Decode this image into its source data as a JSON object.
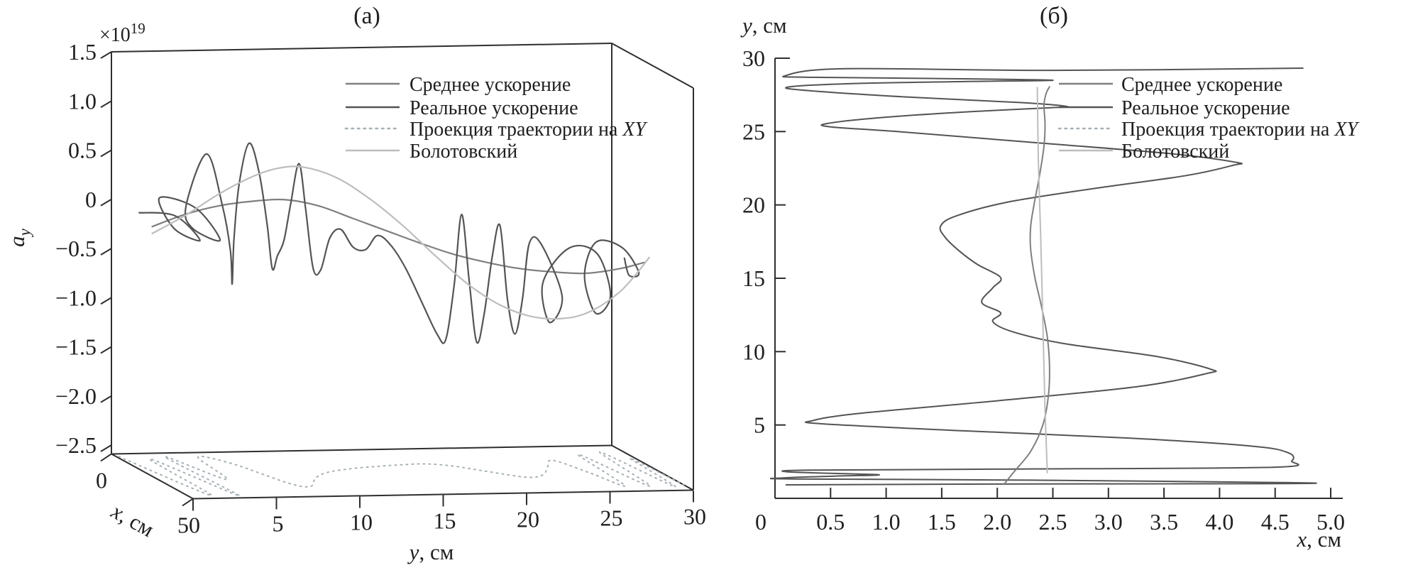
{
  "panel_a": {
    "title": "(а)",
    "offset_text": "×10",
    "offset_exponent": "19",
    "z_axis_label": {
      "main": "a",
      "sub": "y"
    },
    "x_axis_label": {
      "var": "x",
      "unit": ", см"
    },
    "y_axis_label": {
      "var": "y",
      "unit": ", см"
    },
    "z_tick_labels": [
      "1.5",
      "1.0",
      "0.5",
      "0",
      "−0.5",
      "−1.0",
      "−1.5",
      "−2.0",
      "−2.5"
    ],
    "y_tick_labels": [
      "0",
      "5",
      "10",
      "15",
      "20",
      "25",
      "30"
    ],
    "x_tick_labels": [
      "0",
      "5"
    ]
  },
  "panel_b": {
    "title": "(б)",
    "y_axis_label": {
      "var": "y",
      "unit": ", см"
    },
    "x_axis_label": {
      "var": "x",
      "unit": ", см"
    },
    "y_tick_labels": [
      "5",
      "10",
      "15",
      "20",
      "25",
      "30"
    ],
    "x_tick_labels": [
      "0",
      "0.5",
      "1.0",
      "1.5",
      "2.0",
      "2.5",
      "3.0",
      "3.5",
      "4.0",
      "4.5",
      "5.0"
    ]
  },
  "legend": {
    "items": [
      {
        "label": "Среднее ускорение",
        "label_italic": "",
        "color": "#7f7f7f",
        "style": "solid"
      },
      {
        "label": "Реальное ускорение",
        "label_italic": "",
        "color": "#545454",
        "style": "solid"
      },
      {
        "label": "Проекция траектории на ",
        "label_italic": "XY",
        "color": "#a7b0b5",
        "style": "dotted"
      },
      {
        "label": "Болотовский",
        "label_italic": "",
        "color": "#bdbdbd",
        "style": "solid"
      }
    ]
  },
  "chart_data": [
    {
      "id": "panel_a",
      "type": "line",
      "projection": "3d",
      "title": "(а)",
      "xlabel": "x, см",
      "ylabel": "y, см",
      "zlabel": "a_y, ×10^19",
      "xlim": [
        0,
        5
      ],
      "ylim": [
        0,
        30
      ],
      "zlim": [
        -2.5,
        1.5
      ],
      "grid": false,
      "legend_position": "upper right inside",
      "series": [
        {
          "name": "Среднее ускорение",
          "color": "#7f7f7f",
          "width": 2.2,
          "dash": "",
          "points_yzx": [
            [
              0,
              -0.05,
              2.5
            ],
            [
              2,
              0.07,
              2.5
            ],
            [
              4,
              0.15,
              2.5
            ],
            [
              6,
              0.19,
              2.5
            ],
            [
              8,
              0.2,
              2.5
            ],
            [
              10,
              0.13,
              2.5
            ],
            [
              12,
              0.0,
              2.5
            ],
            [
              14,
              -0.13,
              2.5
            ],
            [
              16,
              -0.26,
              2.5
            ],
            [
              18,
              -0.38,
              2.5
            ],
            [
              20,
              -0.47,
              2.5
            ],
            [
              22,
              -0.54,
              2.5
            ],
            [
              24,
              -0.58,
              2.5
            ],
            [
              26,
              -0.6,
              2.5
            ],
            [
              28,
              -0.56,
              2.5
            ],
            [
              29.5,
              -0.5,
              2.5
            ]
          ]
        },
        {
          "name": "Реальное ускорение",
          "color": "#545454",
          "width": 2.2,
          "dash": "",
          "points_yzx": [
            [
              0.2,
              0.0,
              1.5
            ],
            [
              0.7,
              0.12,
              3.2
            ],
            [
              1.2,
              -0.04,
              4.2
            ],
            [
              1.6,
              -0.1,
              2.2
            ],
            [
              1.9,
              0.1,
              1.0
            ],
            [
              2.3,
              0.16,
              2.8
            ],
            [
              2.6,
              -0.06,
              4.0
            ],
            [
              2.9,
              -0.12,
              2.0
            ],
            [
              3.1,
              0.05,
              1.4
            ],
            [
              3.45,
              0.66,
              2.3
            ],
            [
              3.8,
              0.2,
              2.9
            ],
            [
              4.1,
              -0.25,
              3.1
            ],
            [
              4.5,
              -0.62,
              2.8
            ],
            [
              4.9,
              -0.2,
              2.5
            ],
            [
              5.3,
              0.35,
              2.4
            ],
            [
              5.8,
              0.78,
              2.5
            ],
            [
              6.3,
              0.5,
              2.6
            ],
            [
              6.8,
              -0.05,
              2.6
            ],
            [
              7.2,
              -0.5,
              2.5
            ],
            [
              7.6,
              -0.38,
              2.4
            ],
            [
              8.0,
              -0.22,
              2.4
            ],
            [
              8.4,
              0.15,
              2.4
            ],
            [
              8.85,
              0.56,
              2.45
            ],
            [
              9.2,
              0.1,
              2.5
            ],
            [
              9.6,
              -0.5,
              2.55
            ],
            [
              10.1,
              -0.52,
              2.5
            ],
            [
              10.7,
              -0.2,
              2.45
            ],
            [
              11.4,
              -0.12,
              2.4
            ],
            [
              12.1,
              -0.3,
              2.45
            ],
            [
              12.8,
              -0.32,
              2.5
            ],
            [
              13.5,
              -0.18,
              2.5
            ],
            [
              14.3,
              -0.28,
              2.5
            ],
            [
              15.2,
              -0.52,
              2.5
            ],
            [
              16.2,
              -0.88,
              2.5
            ],
            [
              17.1,
              -1.2,
              2.5
            ],
            [
              17.6,
              -1.25,
              2.5
            ],
            [
              18.1,
              -0.7,
              2.5
            ],
            [
              18.55,
              0.02,
              2.5
            ],
            [
              19.0,
              -0.65,
              2.5
            ],
            [
              19.45,
              -1.28,
              2.5
            ],
            [
              19.9,
              -1.0,
              2.5
            ],
            [
              20.4,
              -0.4,
              2.5
            ],
            [
              20.85,
              -0.1,
              2.5
            ],
            [
              21.3,
              -0.85,
              2.5
            ],
            [
              21.7,
              -1.2,
              2.55
            ],
            [
              22.2,
              -0.85,
              2.5
            ],
            [
              22.7,
              -0.3,
              2.4
            ],
            [
              23.2,
              -0.28,
              2.6
            ],
            [
              23.7,
              -0.75,
              3.4
            ],
            [
              24.1,
              -1.12,
              2.2
            ],
            [
              24.6,
              -0.8,
              1.3
            ],
            [
              25.1,
              -0.35,
              2.4
            ],
            [
              25.6,
              -0.3,
              3.6
            ],
            [
              26.1,
              -0.7,
              3.9
            ],
            [
              26.5,
              -1.0,
              2.6
            ],
            [
              26.9,
              -0.72,
              1.5
            ],
            [
              27.3,
              -0.35,
              1.8
            ],
            [
              27.7,
              -0.3,
              3.0
            ],
            [
              28.1,
              -0.5,
              3.6
            ],
            [
              28.5,
              -0.62,
              2.6
            ],
            [
              28.8,
              -0.5,
              2.0
            ]
          ]
        },
        {
          "name": "Проекция траектории на XY",
          "color": "#a7b0b5",
          "width": 2,
          "dash": "2 6",
          "on_floor": true,
          "points_yx": [
            [
              0.15,
              0.3
            ],
            [
              1.4,
              4.7
            ],
            [
              1.7,
              0.6
            ],
            [
              3.0,
              4.8
            ],
            [
              2.8,
              0.4
            ],
            [
              4.0,
              3.0
            ],
            [
              4.7,
              0.5
            ],
            [
              6.0,
              1.3
            ],
            [
              7.2,
              3.5
            ],
            [
              8.1,
              3.9
            ],
            [
              9.3,
              3.0
            ],
            [
              10.6,
              2.4
            ],
            [
              12.3,
              2.05
            ],
            [
              14.0,
              1.85
            ],
            [
              15.6,
              1.72
            ],
            [
              17.2,
              1.66
            ],
            [
              18.6,
              1.95
            ],
            [
              20.0,
              2.6
            ],
            [
              21.7,
              3.3
            ],
            [
              22.9,
              3.05
            ],
            [
              24.0,
              2.2
            ],
            [
              25.0,
              1.5
            ],
            [
              25.8,
              2.9
            ],
            [
              26.5,
              4.4
            ],
            [
              27.1,
              0.9
            ],
            [
              27.9,
              4.5
            ],
            [
              28.6,
              0.7
            ],
            [
              29.3,
              4.6
            ],
            [
              29.7,
              1.4
            ],
            [
              30.0,
              4.4
            ]
          ]
        },
        {
          "name": "Болотовский",
          "color": "#bdbdbd",
          "width": 2.2,
          "dash": "",
          "points_yzx": [
            [
              0,
              -0.12,
              2.5
            ],
            [
              2,
              0.06,
              2.5
            ],
            [
              4,
              0.27,
              2.5
            ],
            [
              6,
              0.44,
              2.5
            ],
            [
              7.5,
              0.52,
              2.5
            ],
            [
              9,
              0.53,
              2.5
            ],
            [
              11,
              0.42,
              2.5
            ],
            [
              13,
              0.2,
              2.5
            ],
            [
              15,
              -0.08,
              2.5
            ],
            [
              17,
              -0.4,
              2.5
            ],
            [
              19,
              -0.7,
              2.5
            ],
            [
              21,
              -0.92,
              2.5
            ],
            [
              23,
              -1.04,
              2.5
            ],
            [
              25,
              -1.05,
              2.5
            ],
            [
              26.5,
              -0.97,
              2.5
            ],
            [
              28,
              -0.8,
              2.5
            ],
            [
              29,
              -0.62,
              2.5
            ],
            [
              29.8,
              -0.45,
              2.5
            ]
          ]
        }
      ]
    },
    {
      "id": "panel_b",
      "type": "line",
      "title": "(б)",
      "xlabel": "x, см",
      "ylabel": "y, см",
      "xlim": [
        0,
        5
      ],
      "ylim": [
        0,
        30
      ],
      "grid": false,
      "legend_position": "upper right inside",
      "series": [
        {
          "name": "Реальное ускорение",
          "color": "#545454",
          "width": 2,
          "dash": "",
          "points_xy": [
            [
              0.1,
              0.92
            ],
            [
              2.3,
              0.98
            ],
            [
              4.52,
              1.0
            ],
            [
              4.64,
              1.07
            ],
            [
              2.3,
              1.24
            ],
            [
              0.16,
              1.32
            ],
            [
              0.09,
              1.4
            ],
            [
              0.55,
              1.52
            ],
            [
              0.94,
              1.6
            ],
            [
              0.55,
              1.7
            ],
            [
              0.12,
              1.8
            ],
            [
              0.3,
              1.92
            ],
            [
              2.2,
              2.0
            ],
            [
              4.48,
              2.12
            ],
            [
              4.65,
              2.55
            ],
            [
              4.62,
              3.1
            ],
            [
              4.3,
              3.55
            ],
            [
              3.2,
              4.1
            ],
            [
              1.7,
              4.6
            ],
            [
              0.42,
              5.08
            ],
            [
              0.34,
              5.3
            ],
            [
              0.75,
              5.78
            ],
            [
              2.0,
              6.65
            ],
            [
              3.25,
              7.6
            ],
            [
              3.88,
              8.5
            ],
            [
              3.92,
              8.8
            ],
            [
              3.45,
              9.65
            ],
            [
              2.6,
              10.55
            ],
            [
              2.14,
              11.35
            ],
            [
              1.96,
              12.05
            ],
            [
              2.03,
              12.65
            ],
            [
              1.86,
              13.35
            ],
            [
              1.96,
              14.35
            ],
            [
              2.03,
              15.05
            ],
            [
              1.82,
              15.95
            ],
            [
              1.66,
              16.85
            ],
            [
              1.53,
              17.8
            ],
            [
              1.49,
              18.55
            ],
            [
              1.63,
              19.25
            ],
            [
              2.1,
              20.2
            ],
            [
              2.9,
              21.15
            ],
            [
              3.7,
              22.0
            ],
            [
              4.12,
              22.7
            ],
            [
              4.15,
              22.9
            ],
            [
              3.55,
              23.5
            ],
            [
              2.25,
              24.3
            ],
            [
              1.1,
              25.0
            ],
            [
              0.5,
              25.32
            ],
            [
              0.47,
              25.55
            ],
            [
              0.95,
              25.95
            ],
            [
              1.75,
              26.35
            ],
            [
              2.48,
              26.62
            ],
            [
              2.62,
              26.72
            ],
            [
              2.2,
              26.98
            ],
            [
              1.2,
              27.35
            ],
            [
              0.32,
              27.78
            ],
            [
              0.11,
              28.02
            ],
            [
              0.6,
              28.25
            ],
            [
              1.6,
              28.4
            ],
            [
              2.5,
              28.5
            ],
            [
              1.4,
              28.62
            ],
            [
              0.3,
              28.7
            ],
            [
              0.09,
              28.8
            ],
            [
              0.6,
              29.28
            ],
            [
              2.5,
              29.17
            ],
            [
              4.75,
              29.32
            ]
          ]
        },
        {
          "name": "Среднее ускорение",
          "color": "#7f7f7f",
          "width": 2,
          "dash": "",
          "points_xy": [
            [
              2.06,
              0.95
            ],
            [
              2.15,
              1.8
            ],
            [
              2.3,
              3.2
            ],
            [
              2.41,
              5.0
            ],
            [
              2.46,
              7.0
            ],
            [
              2.47,
              9.0
            ],
            [
              2.45,
              11.0
            ],
            [
              2.4,
              13.0
            ],
            [
              2.34,
              15.0
            ],
            [
              2.3,
              17.0
            ],
            [
              2.3,
              18.5
            ],
            [
              2.33,
              20.0
            ],
            [
              2.38,
              22.0
            ],
            [
              2.42,
              24.0
            ],
            [
              2.43,
              25.5
            ],
            [
              2.42,
              26.8
            ],
            [
              2.44,
              27.6
            ],
            [
              2.47,
              28.05
            ]
          ]
        },
        {
          "name": "Болотовский",
          "color": "#bdbdbd",
          "width": 2,
          "dash": "",
          "points_xy": [
            [
              2.45,
              1.75
            ],
            [
              2.43,
              6.0
            ],
            [
              2.41,
              12.0
            ],
            [
              2.39,
              18.0
            ],
            [
              2.37,
              23.0
            ],
            [
              2.36,
              28.0
            ]
          ]
        }
      ]
    }
  ]
}
